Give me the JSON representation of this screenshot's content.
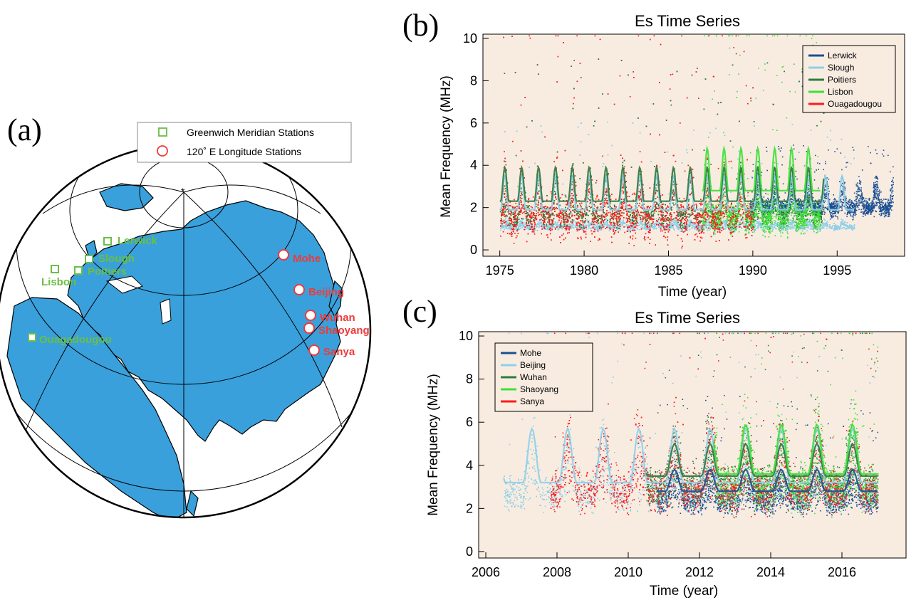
{
  "panel_a": {
    "label": "(a)",
    "legend": {
      "greenwich": "Greenwich Meridian Stations",
      "east120": "120˚ E Longitude Stations"
    },
    "stations_green": [
      "Lerwick",
      "Slough",
      "Poitiers",
      "Lisbon",
      "Ouagadougou"
    ],
    "stations_red": [
      "Mohe",
      "Beijing",
      "Wuhan",
      "Shaoyang",
      "Sanya"
    ],
    "colors": {
      "green": "#6abf45",
      "red": "#ee3a3a",
      "ocean_land": "#39a0db"
    }
  },
  "chart_data": [
    {
      "panel_label": "(b)",
      "type": "scatter",
      "title": "Es Time Series",
      "xlabel": "Time (year)",
      "ylabel": "Mean Frequency (MHz)",
      "xlim": [
        1974,
        1999
      ],
      "ylim": [
        -0.3,
        10.2
      ],
      "xticks": [
        1975,
        1980,
        1985,
        1990,
        1995
      ],
      "yticks": [
        0,
        2,
        4,
        6,
        8,
        10
      ],
      "background": "#f8ece1",
      "legend_position": "top-right",
      "series": [
        {
          "name": "Lerwick",
          "color": "#1b4f93",
          "x_range": [
            1989.8,
            1998.3
          ],
          "base": 2.0,
          "amp": 1.5,
          "spread": 0.6,
          "spike": 3.0
        },
        {
          "name": "Slough",
          "color": "#8ecfe9",
          "x_range": [
            1975.0,
            1996.0
          ],
          "base": 1.1,
          "amp": 0.3,
          "spread": 0.25,
          "spike": 5.0,
          "mean_base": 1.9,
          "mean_amp": 1.6
        },
        {
          "name": "Poitiers",
          "color": "#2f7a3f",
          "x_range": [
            1975.0,
            1994.2
          ],
          "base": 1.6,
          "amp": 2.2,
          "spread": 0.8,
          "spike": 7.5,
          "mean_base": 2.3,
          "mean_amp": 1.6
        },
        {
          "name": "Lisbon",
          "color": "#3ee038",
          "x_range": [
            1987.0,
            1994.0
          ],
          "base": 1.5,
          "amp": 2.5,
          "spread": 1.0,
          "spike": 10.0,
          "mean_base": 2.8,
          "mean_amp": 2.0
        },
        {
          "name": "Ouagadougou",
          "color": "#ff1a1a",
          "x_range": [
            1975.0,
            1990.0
          ],
          "base": 1.5,
          "amp": 2.5,
          "spread": 1.5,
          "spike": 9.5
        }
      ]
    },
    {
      "panel_label": "(c)",
      "type": "scatter",
      "title": "Es Time Series",
      "xlabel": "Time (year)",
      "ylabel": "Mean Frequency (MHz)",
      "xlim": [
        2005.8,
        2017.8
      ],
      "ylim": [
        -0.3,
        10.2
      ],
      "xticks": [
        2006,
        2008,
        2010,
        2012,
        2014,
        2016
      ],
      "yticks": [
        0,
        2,
        4,
        6,
        8,
        10
      ],
      "background": "#f8ece1",
      "legend_position": "top-left",
      "series": [
        {
          "name": "Mohe",
          "color": "#1b4f93",
          "x_range": [
            2010.8,
            2017.0
          ],
          "base": 2.3,
          "amp": 1.4,
          "spread": 0.8,
          "spike": 5.0,
          "mean_base": 2.8,
          "mean_amp": 1.0
        },
        {
          "name": "Beijing",
          "color": "#8ecfe9",
          "x_range": [
            2006.5,
            2017.0
          ],
          "base": 2.7,
          "amp": 3.0,
          "spread": 1.2,
          "spike": 9.0,
          "mean_base": 3.2,
          "mean_amp": 2.5
        },
        {
          "name": "Wuhan",
          "color": "#2f7a3f",
          "x_range": [
            2010.5,
            2017.0
          ],
          "base": 3.0,
          "amp": 3.0,
          "spread": 1.3,
          "spike": 9.0,
          "mean_base": 3.5,
          "mean_amp": 1.5
        },
        {
          "name": "Shaoyang",
          "color": "#3ee038",
          "x_range": [
            2012.4,
            2017.0
          ],
          "base": 3.0,
          "amp": 4.0,
          "spread": 1.5,
          "spike": 10.0,
          "mean_base": 3.6,
          "mean_amp": 2.3
        },
        {
          "name": "Sanya",
          "color": "#ff1a1a",
          "x_range": [
            2007.8,
            2017.0
          ],
          "base": 2.8,
          "amp": 3.4,
          "spread": 1.4,
          "spike": 10.0
        }
      ]
    }
  ]
}
